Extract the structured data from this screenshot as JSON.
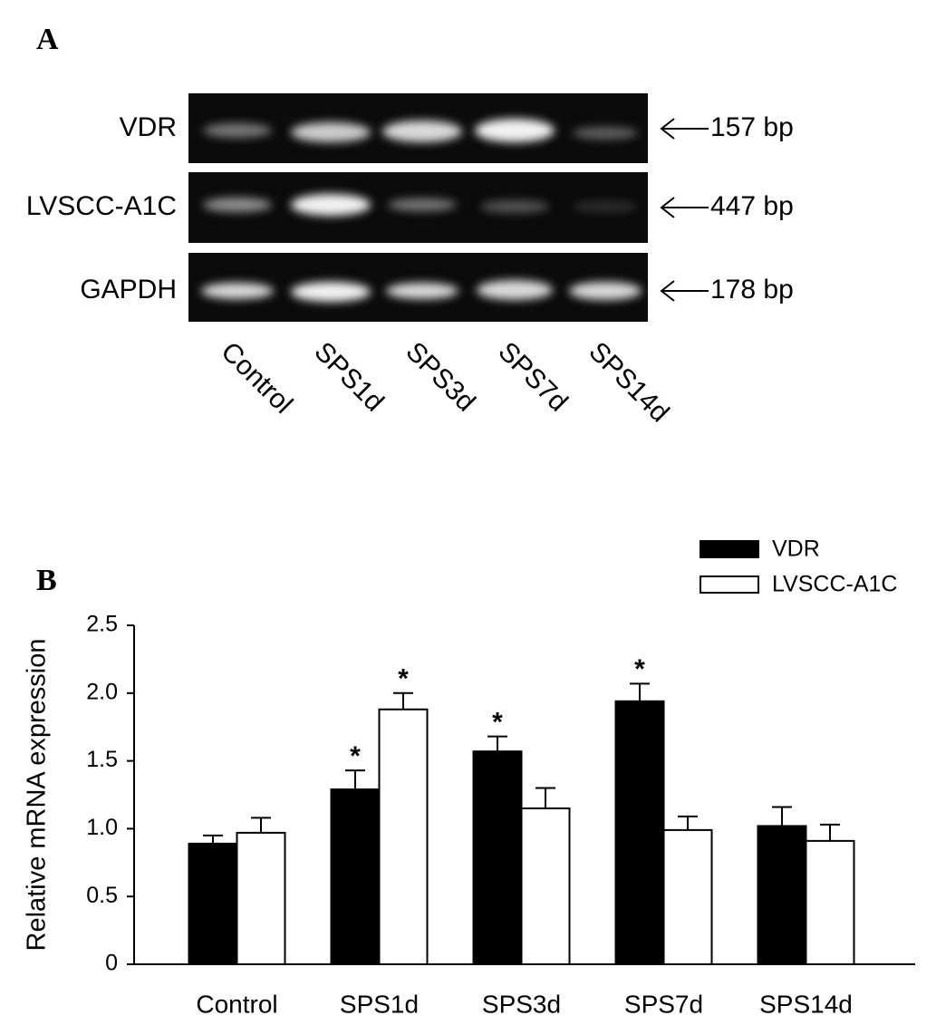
{
  "gel": {
    "label": "A",
    "rows": [
      {
        "name": "VDR",
        "size": "157 bp"
      },
      {
        "name": "LVSCC-A1C",
        "size": "447 bp"
      },
      {
        "name": "GAPDH",
        "size": "178 bp"
      }
    ],
    "lanes": [
      "Control",
      "SPS1d",
      "SPS3d",
      "SPS7d",
      "SPS14d"
    ]
  },
  "chart_data": {
    "type": "bar",
    "panel_label": "B",
    "y_label": "Relative mRNA expression",
    "categories": [
      "Control",
      "SPS1d",
      "SPS3d",
      "SPS7d",
      "SPS14d"
    ],
    "series": [
      {
        "name": "VDR",
        "color": "#000000",
        "values": [
          0.89,
          1.29,
          1.57,
          1.94,
          1.02
        ],
        "errors": [
          0.06,
          0.14,
          0.11,
          0.13,
          0.14
        ],
        "markers": [
          null,
          "*",
          "*",
          "*",
          null
        ]
      },
      {
        "name": "LVSCC-A1C",
        "color": "#ffffff",
        "values": [
          0.97,
          1.88,
          1.15,
          0.99,
          0.91
        ],
        "errors": [
          0.11,
          0.12,
          0.15,
          0.1,
          0.12
        ],
        "markers": [
          null,
          "*",
          null,
          null,
          null
        ]
      }
    ],
    "ylim": [
      0,
      2.5
    ],
    "yticks": [
      0,
      0.5,
      {
        "value": 1,
        "label": "1.0"
      },
      1.5,
      {
        "value": 2,
        "label": "2.0"
      },
      2.5
    ],
    "legend": "top-right"
  }
}
